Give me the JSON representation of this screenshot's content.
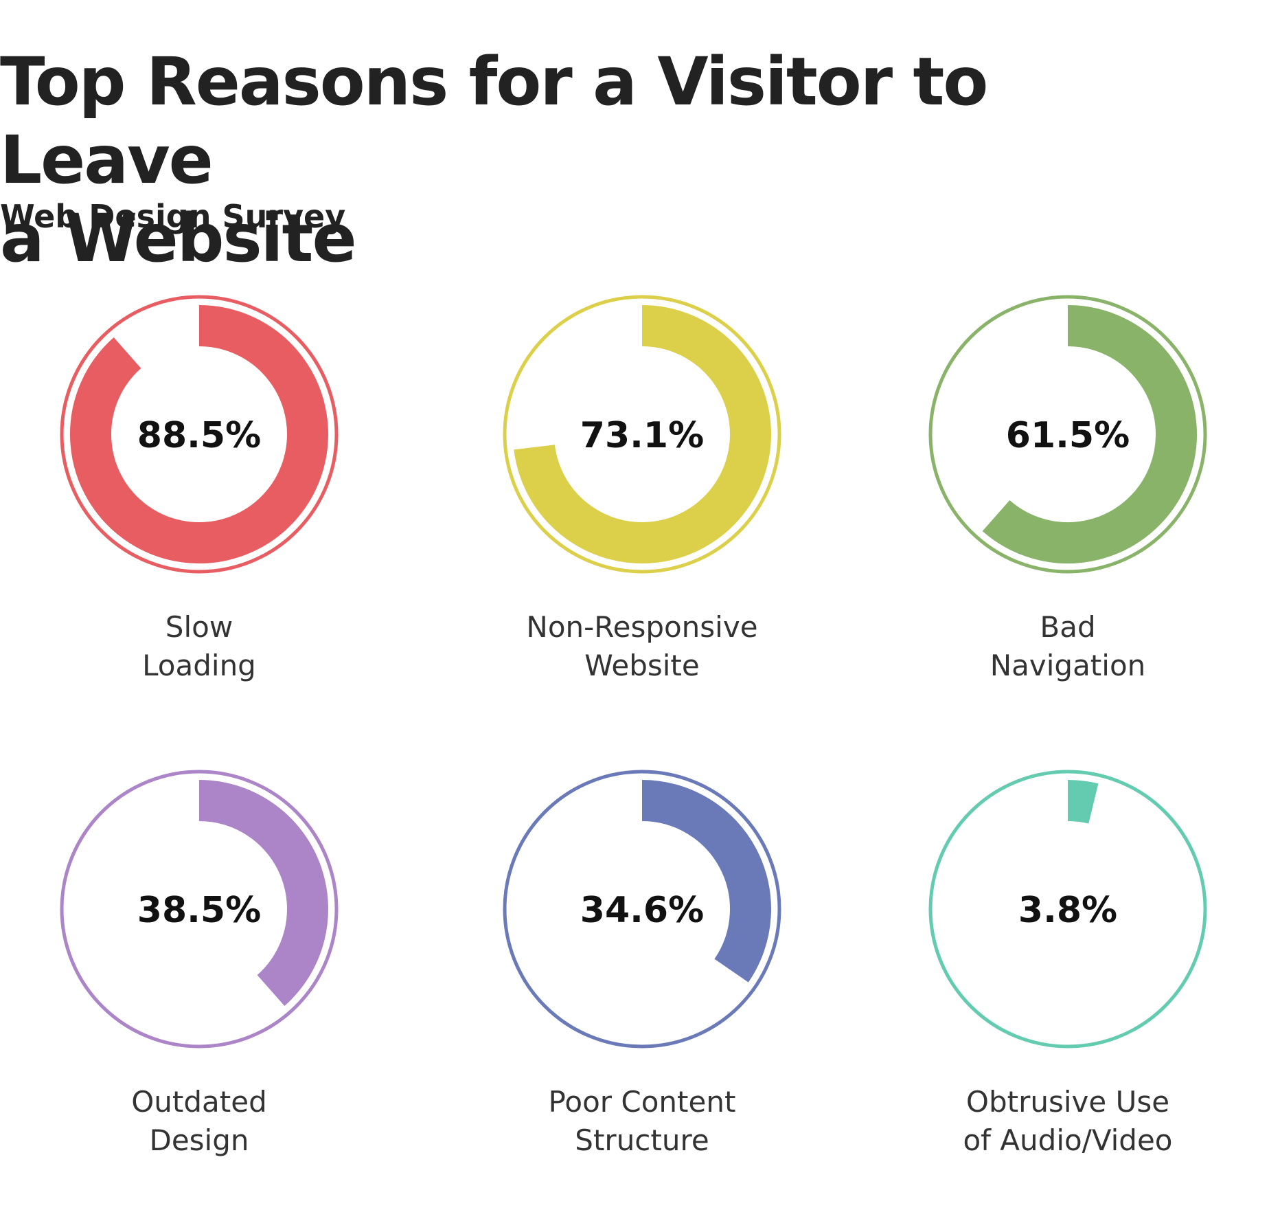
{
  "chart_data": {
    "type": "pie",
    "title_line1": "Top Reasons for a Visitor to Leave",
    "title_line2": "a Website",
    "subtitle": "Web Design Survey",
    "unit": "%",
    "items": [
      {
        "label_lines": [
          "Slow",
          "Loading"
        ],
        "value": 88.5,
        "display": "88.5%",
        "color": "#E85D61"
      },
      {
        "label_lines": [
          "Non-Responsive",
          "Website"
        ],
        "value": 73.1,
        "display": "73.1%",
        "color": "#DCCF4A"
      },
      {
        "label_lines": [
          "Bad",
          "Navigation"
        ],
        "value": 61.5,
        "display": "61.5%",
        "color": "#88B369"
      },
      {
        "label_lines": [
          "Outdated",
          "Design"
        ],
        "value": 38.5,
        "display": "38.5%",
        "color": "#AC84C8"
      },
      {
        "label_lines": [
          "Poor Content",
          "Structure"
        ],
        "value": 34.6,
        "display": "34.6%",
        "color": "#6A79B8"
      },
      {
        "label_lines": [
          "Obtrusive Use",
          "of Audio/Video"
        ],
        "value": 3.8,
        "display": "3.8%",
        "color": "#63CBAF"
      }
    ]
  }
}
